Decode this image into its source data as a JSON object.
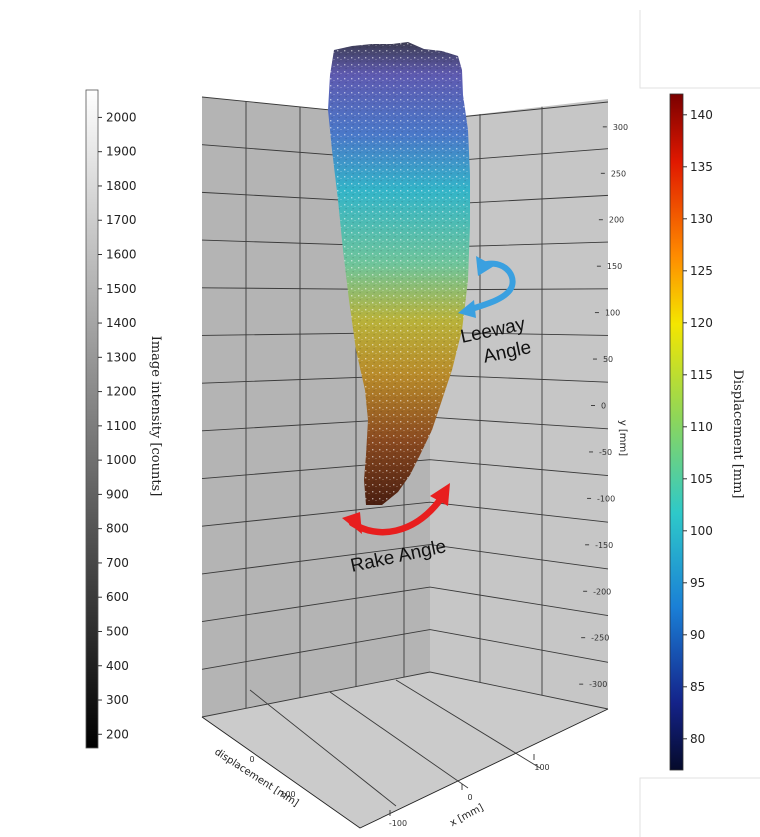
{
  "chart_data": {
    "type": "3d-surface",
    "title": "",
    "annotations": [
      "Leeway Angle",
      "Rake Angle"
    ],
    "axes": {
      "y": {
        "label": "y [mm]",
        "ticks": [
          300,
          250,
          200,
          150,
          100,
          50,
          0,
          -50,
          -100,
          -150,
          -200,
          -250,
          -300
        ],
        "range": [
          -330,
          330
        ]
      },
      "x": {
        "label": "x [mm]",
        "ticks": [
          -100,
          0,
          100
        ]
      },
      "displacement": {
        "label": "displacement [mm]",
        "ticks": [
          0,
          100
        ]
      }
    },
    "colorbars": [
      {
        "label": "Image intensity [counts]",
        "colormap": "grayscale",
        "ticks": [
          2000,
          1900,
          1800,
          1700,
          1600,
          1500,
          1400,
          1300,
          1200,
          1100,
          1000,
          900,
          800,
          700,
          600,
          500,
          400,
          300,
          200
        ],
        "range": [
          160,
          2080
        ]
      },
      {
        "label": "Displacement [mm]",
        "colormap": "jet",
        "ticks": [
          140,
          135,
          130,
          125,
          120,
          115,
          110,
          105,
          100,
          95,
          90,
          85,
          80
        ],
        "range": [
          77,
          142
        ]
      }
    ],
    "colors": {
      "leeway_arrow": "#3aa0e0",
      "rake_arrow": "#e81e1e",
      "panel": "#b4b4b4",
      "floor": "#c8c8c8"
    }
  }
}
